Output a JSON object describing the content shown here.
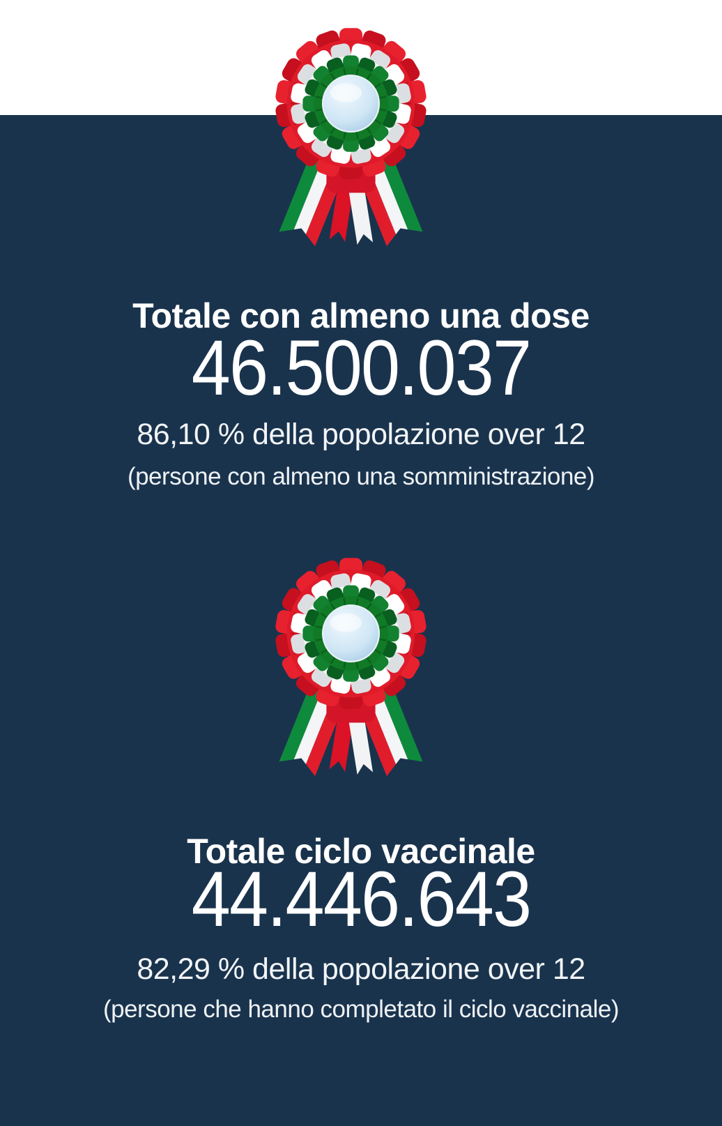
{
  "colors": {
    "top_band": "#ffffff",
    "panel_background": "#1a334d",
    "text_primary": "#ffffff",
    "flag_red": "#e11d2c",
    "flag_white": "#f4f5f6",
    "flag_green": "#0e8a3d",
    "cockade_center_blue": "#cfe6f5"
  },
  "sections": [
    {
      "icon": "italian-cockade",
      "title": "Totale con almeno una dose",
      "value": "46.500.037",
      "percent_line": "86,10 % della popolazione over 12",
      "note_line": "(persone con almeno una somministrazione)"
    },
    {
      "icon": "italian-cockade",
      "title": "Totale ciclo vaccinale",
      "value": "44.446.643",
      "percent_line": "82,29 % della popolazione over 12",
      "note_line": "(persone che hanno completato il ciclo vaccinale)"
    }
  ]
}
